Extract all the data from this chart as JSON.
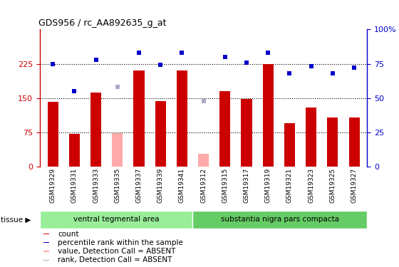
{
  "title": "GDS956 / rc_AA892635_g_at",
  "categories": [
    "GSM19329",
    "GSM19331",
    "GSM19333",
    "GSM19335",
    "GSM19337",
    "GSM19339",
    "GSM19341",
    "GSM19312",
    "GSM19315",
    "GSM19317",
    "GSM19319",
    "GSM19321",
    "GSM19323",
    "GSM19325",
    "GSM19327"
  ],
  "bar_values": [
    142,
    72,
    162,
    null,
    210,
    143,
    210,
    null,
    165,
    148,
    225,
    95,
    130,
    107,
    107
  ],
  "bar_absent": [
    null,
    null,
    null,
    73,
    null,
    null,
    null,
    28,
    null,
    null,
    null,
    null,
    null,
    null,
    null
  ],
  "rank_values": [
    75,
    55,
    78,
    null,
    83,
    74,
    83,
    null,
    80,
    76,
    83,
    68,
    73,
    68,
    72
  ],
  "rank_absent": [
    null,
    null,
    null,
    58,
    null,
    null,
    null,
    48,
    null,
    null,
    null,
    null,
    null,
    null,
    null
  ],
  "bar_color": "#cc0000",
  "bar_absent_color": "#ffaaaa",
  "rank_color": "#0000cc",
  "rank_absent_color": "#aaaacc",
  "ylim_left": [
    0,
    300
  ],
  "ylim_right": [
    0,
    100
  ],
  "yticks_left": [
    0,
    75,
    150,
    225
  ],
  "yticks_right": [
    0,
    25,
    50,
    75,
    100
  ],
  "hlines": [
    75,
    150,
    225
  ],
  "group1_label": "ventral tegmental area",
  "group2_label": "substantia nigra pars compacta",
  "group1_count": 7,
  "group2_count": 8,
  "tissue_label": "tissue",
  "legend_items": [
    {
      "label": "count",
      "color": "#cc0000"
    },
    {
      "label": "percentile rank within the sample",
      "color": "#0000cc"
    },
    {
      "label": "value, Detection Call = ABSENT",
      "color": "#ffaaaa"
    },
    {
      "label": "rank, Detection Call = ABSENT",
      "color": "#aaaacc"
    }
  ],
  "bg_color": "#ffffff",
  "plot_bg_color": "#ffffff",
  "tick_area_color": "#cccccc",
  "group1_bg": "#99ee99",
  "group2_bg": "#66cc66"
}
